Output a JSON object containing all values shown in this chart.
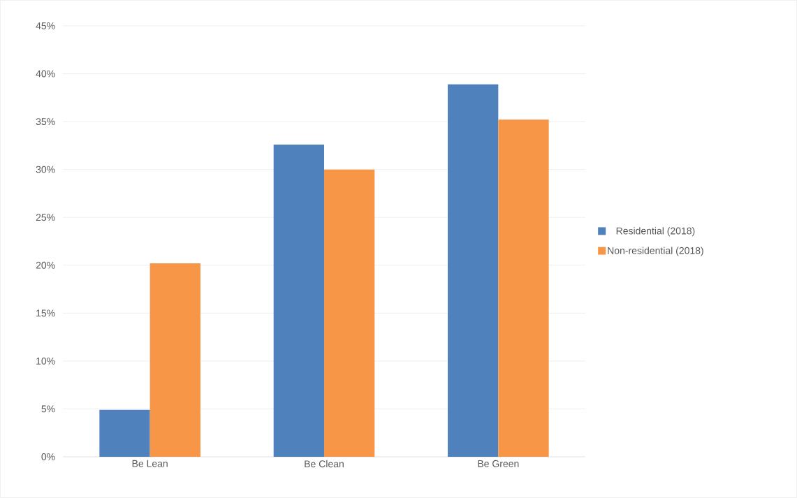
{
  "chart_data": {
    "type": "bar",
    "categories": [
      "Be Lean",
      "Be Clean",
      "Be Green"
    ],
    "series": [
      {
        "name": "Residential (2018)",
        "color": "#4f81bd",
        "values": [
          4.9,
          32.6,
          38.9
        ]
      },
      {
        "name": "Non-residential (2018)",
        "color": "#f79646",
        "values": [
          20.2,
          30.0,
          35.2
        ]
      }
    ],
    "ylim": [
      0,
      45
    ],
    "yticks": [
      {
        "value": 0,
        "label": "0%"
      },
      {
        "value": 5,
        "label": "5%"
      },
      {
        "value": 10,
        "label": "10%"
      },
      {
        "value": 15,
        "label": "15%"
      },
      {
        "value": 20,
        "label": "20%"
      },
      {
        "value": 25,
        "label": "25%"
      },
      {
        "value": 30,
        "label": "30%"
      },
      {
        "value": 35,
        "label": "35%"
      },
      {
        "value": 40,
        "label": "40%"
      },
      {
        "value": 45,
        "label": "45%"
      }
    ],
    "grid": "y",
    "legend": "right"
  }
}
